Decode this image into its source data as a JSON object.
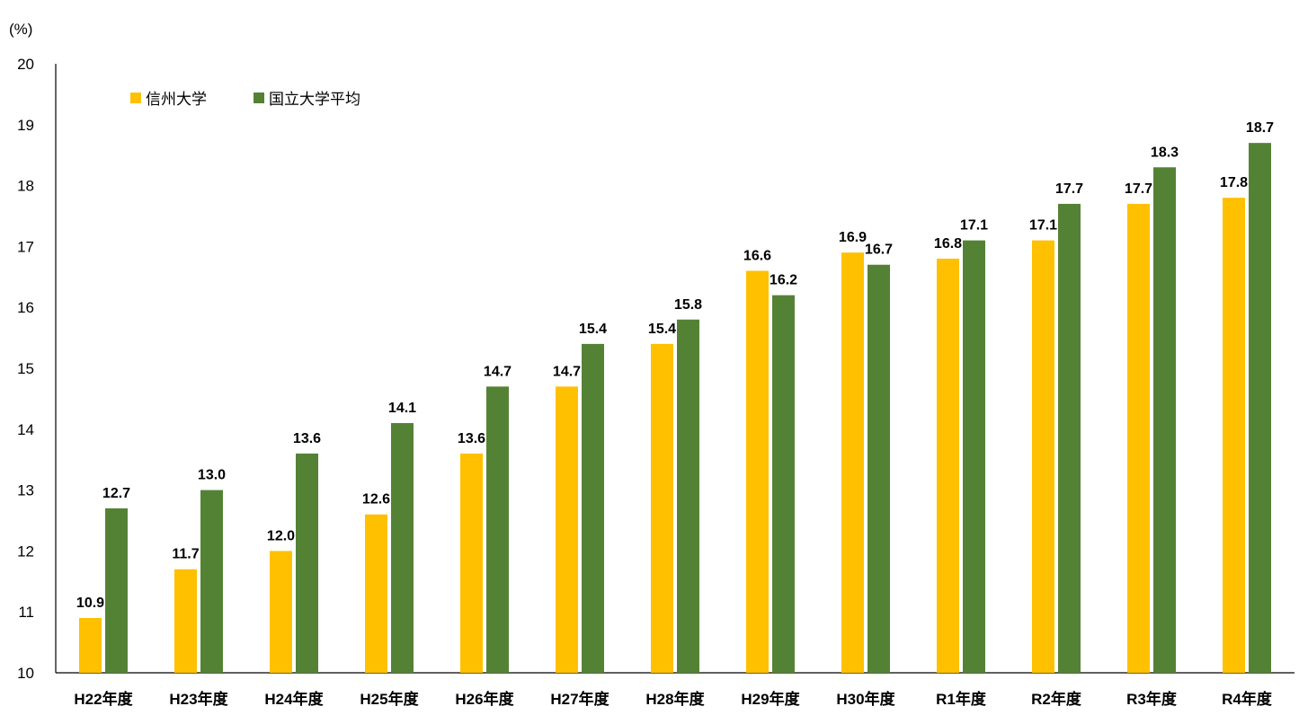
{
  "chart_data": {
    "type": "bar",
    "title": "",
    "xlabel": "",
    "ylabel": "",
    "y_unit_label": "(%)",
    "ylim": [
      10,
      20
    ],
    "yticks": [
      10,
      11,
      12,
      13,
      14,
      15,
      16,
      17,
      18,
      19,
      20
    ],
    "grid": false,
    "legend_position": "top-left",
    "categories": [
      "H22年度",
      "H23年度",
      "H24年度",
      "H25年度",
      "H26年度",
      "H27年度",
      "H28年度",
      "H29年度",
      "H30年度",
      "R1年度",
      "R2年度",
      "R3年度",
      "R4年度"
    ],
    "series": [
      {
        "name": "信州大学",
        "color": "#FFC000",
        "values": [
          10.9,
          11.7,
          12.0,
          12.6,
          13.6,
          14.7,
          15.4,
          16.6,
          16.9,
          16.8,
          17.1,
          17.7,
          17.8
        ],
        "labels": [
          "10.9",
          "11.7",
          "12.0",
          "12.6",
          "13.6",
          "14.7",
          "15.4",
          "16.6",
          "16.9",
          "16.8",
          "17.1",
          "17.7",
          "17.8"
        ]
      },
      {
        "name": "国立大学平均",
        "color": "#548235",
        "values": [
          12.7,
          13.0,
          13.6,
          14.1,
          14.7,
          15.4,
          15.8,
          16.2,
          16.7,
          17.1,
          17.7,
          18.3,
          18.7
        ],
        "labels": [
          "12.7",
          "13.0",
          "13.6",
          "14.1",
          "14.7",
          "15.4",
          "15.8",
          "16.2",
          "16.7",
          "17.1",
          "17.7",
          "18.3",
          "18.7"
        ]
      }
    ]
  }
}
